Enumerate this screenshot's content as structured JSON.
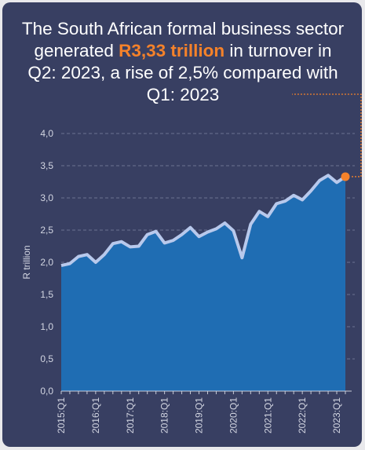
{
  "headline": {
    "part1": "The South African formal business sector generated ",
    "highlight": "R3,33 trillion",
    "part2": " in turnover in Q2: 2023, a rise of 2,5% compared with Q1: 2023"
  },
  "colors": {
    "background": "#383f62",
    "area_fill": "#1f6db3",
    "line": "#b8c9ec",
    "highlight": "#f5822a",
    "grid": "#6c7393",
    "tick_text": "#d3d6e2"
  },
  "chart_data": {
    "type": "area",
    "title": "The South African formal business sector generated R3,33 trillion in turnover in Q2: 2023, a rise of 2,5% compared with Q1: 2023",
    "xlabel": "",
    "ylabel": "R trillion",
    "ylim": [
      0,
      4
    ],
    "y_ticks": [
      "0,0",
      "0,5",
      "1,0",
      "1,5",
      "2,0",
      "2,5",
      "3,0",
      "3,5",
      "4,0"
    ],
    "x_tick_labels": [
      "2015:Q1",
      "2016:Q1",
      "2017:Q1",
      "2018:Q1",
      "2019:Q1",
      "2020:Q1",
      "2021:Q1",
      "2022:Q1",
      "2023:Q1"
    ],
    "grid": "horizontal dashed",
    "highlighted_point": {
      "x": "2023:Q2",
      "y": 3.33
    },
    "x": [
      "2015:Q1",
      "2015:Q2",
      "2015:Q3",
      "2015:Q4",
      "2016:Q1",
      "2016:Q2",
      "2016:Q3",
      "2016:Q4",
      "2017:Q1",
      "2017:Q2",
      "2017:Q3",
      "2017:Q4",
      "2018:Q1",
      "2018:Q2",
      "2018:Q3",
      "2018:Q4",
      "2019:Q1",
      "2019:Q2",
      "2019:Q3",
      "2019:Q4",
      "2020:Q1",
      "2020:Q2",
      "2020:Q3",
      "2020:Q4",
      "2021:Q1",
      "2021:Q2",
      "2021:Q3",
      "2021:Q4",
      "2022:Q1",
      "2022:Q2",
      "2022:Q3",
      "2022:Q4",
      "2023:Q1",
      "2023:Q2"
    ],
    "values": [
      1.95,
      1.98,
      2.09,
      2.12,
      2.0,
      2.12,
      2.29,
      2.32,
      2.24,
      2.25,
      2.43,
      2.48,
      2.3,
      2.34,
      2.43,
      2.54,
      2.4,
      2.47,
      2.52,
      2.61,
      2.49,
      2.07,
      2.59,
      2.79,
      2.71,
      2.91,
      2.95,
      3.04,
      2.97,
      3.11,
      3.27,
      3.35,
      3.24,
      3.33
    ]
  }
}
